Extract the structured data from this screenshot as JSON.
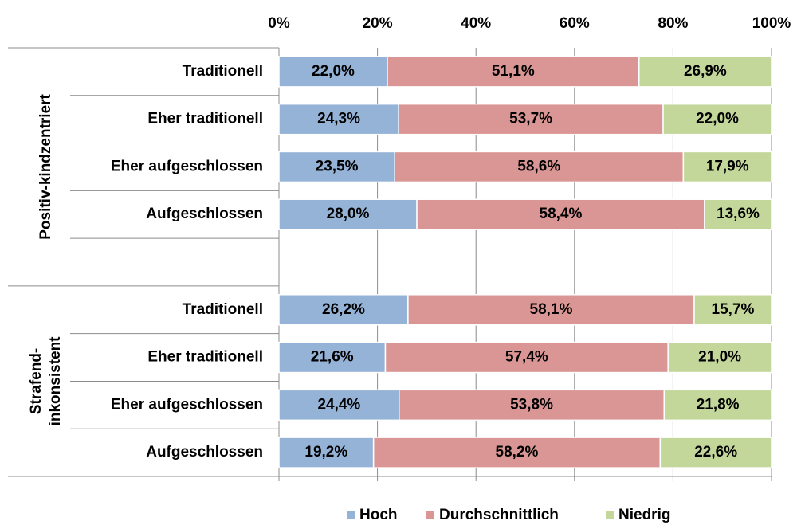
{
  "chart_data": {
    "type": "stacked-bar-horizontal",
    "groups": [
      [
        "Positiv-kindzentriert"
      ],
      [
        "Strafend-",
        "inkonsistent"
      ]
    ],
    "categories": [
      "Traditionell",
      "Eher traditionell",
      "Eher aufgeschlossen",
      "Aufgeschlossen",
      null,
      "Traditionell",
      "Eher traditionell",
      "Eher aufgeschlossen",
      "Aufgeschlossen"
    ],
    "series": [
      {
        "name": "Hoch",
        "color": "#95b3d7",
        "values": [
          22.0,
          24.3,
          23.5,
          28.0,
          null,
          26.2,
          21.6,
          24.4,
          19.2
        ],
        "value_labels": [
          "22,0%",
          "24,3%",
          "23,5%",
          "28,0%",
          null,
          "26,2%",
          "21,6%",
          "24,4%",
          "19,2%"
        ]
      },
      {
        "name": "Durchschnittlich",
        "color": "#da9694",
        "values": [
          51.1,
          53.7,
          58.6,
          58.4,
          null,
          58.1,
          57.4,
          53.8,
          58.2
        ],
        "value_labels": [
          "51,1%",
          "53,7%",
          "58,6%",
          "58,4%",
          null,
          "58,1%",
          "57,4%",
          "53,8%",
          "58,2%"
        ]
      },
      {
        "name": "Niedrig",
        "color": "#c4d79b",
        "values": [
          26.9,
          22.0,
          17.9,
          13.6,
          null,
          15.7,
          21.0,
          21.8,
          22.6
        ],
        "value_labels": [
          "26,9%",
          "22,0%",
          "17,9%",
          "13,6%",
          null,
          "15,7%",
          "21,0%",
          "21,8%",
          "22,6%"
        ]
      }
    ],
    "xlim": [
      0,
      100
    ],
    "xticks": [
      {
        "value": 0,
        "label": "0%"
      },
      {
        "value": 20,
        "label": "20%"
      },
      {
        "value": 40,
        "label": "40%"
      },
      {
        "value": 60,
        "label": "60%"
      },
      {
        "value": 80,
        "label": "80%"
      },
      {
        "value": 100,
        "label": "100%"
      }
    ],
    "grid": true,
    "legend": "bottom"
  }
}
